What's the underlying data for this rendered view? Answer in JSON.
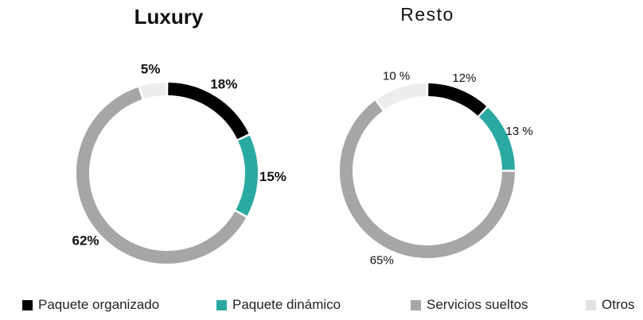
{
  "chart_data": [
    {
      "type": "pie",
      "title": "Luxury",
      "categories": [
        "Paquete organizado",
        "Paquete dinámico",
        "Servicios sueltos",
        "Otros"
      ],
      "values": [
        18,
        15,
        62,
        5
      ],
      "labels": [
        "18%",
        "15%",
        "62%",
        "5%"
      ]
    },
    {
      "type": "pie",
      "title": "Resto",
      "categories": [
        "Paquete organizado",
        "Paquete dinámico",
        "Servicios sueltos",
        "Otros"
      ],
      "values": [
        12,
        13,
        65,
        10
      ],
      "labels": [
        "12%",
        "13 %",
        "65%",
        "10 %"
      ]
    }
  ],
  "legend": {
    "position": "bottom",
    "items": [
      {
        "label": "Paquete organizado",
        "color": "#000000"
      },
      {
        "label": "Paquete dinámico",
        "color": "#2aa9a3"
      },
      {
        "label": "Servicios sueltos",
        "color": "#a6a6a6"
      },
      {
        "label": "Otros",
        "color": "#e3e3e3"
      }
    ]
  },
  "colors": {
    "paquete_organizado": "#000000",
    "paquete_dinamico": "#2aa9a3",
    "servicios_sueltos": "#a6a6a6",
    "otros": "#ededed"
  }
}
